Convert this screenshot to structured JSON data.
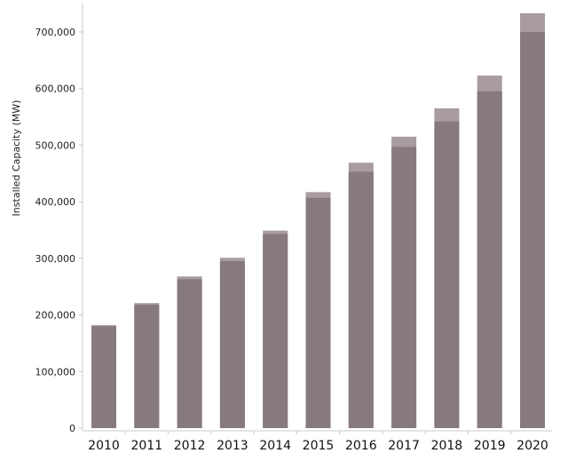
{
  "chart_data": {
    "type": "bar",
    "title": "",
    "xlabel": "",
    "ylabel": "Installed Capacity (MW)",
    "categories": [
      "2010",
      "2011",
      "2012",
      "2013",
      "2014",
      "2015",
      "2016",
      "2017",
      "2018",
      "2019",
      "2020"
    ],
    "series": [
      {
        "values": [
          180000,
          218000,
          263000,
          295000,
          343000,
          407000,
          453000,
          497000,
          542000,
          595000,
          700000
        ]
      },
      {
        "values": [
          182000,
          221000,
          268000,
          301000,
          349000,
          417000,
          469000,
          515000,
          565000,
          623000,
          733000
        ]
      }
    ],
    "ylim": [
      0,
      740000
    ],
    "yticks": [
      0,
      100000,
      200000,
      300000,
      400000,
      500000,
      600000,
      700000
    ],
    "ytick_labels": [
      "0",
      "100,000",
      "200,000",
      "300,000",
      "400,000",
      "500,000",
      "600,000",
      "700,000"
    ],
    "grid": false,
    "colors": {
      "bar_front": "#877a7e",
      "bar_back": "#a89ba1",
      "axis": "#c9c9c9"
    }
  }
}
